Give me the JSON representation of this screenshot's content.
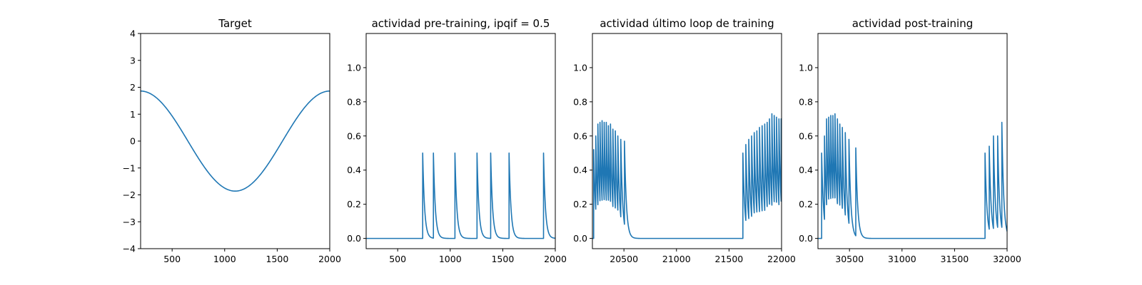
{
  "chart_data": [
    {
      "type": "line",
      "title": "Target",
      "xlabel": "",
      "ylabel": "",
      "xlim": [
        200,
        2000
      ],
      "ylim": [
        -4,
        4
      ],
      "xticks": [
        500,
        1000,
        1500,
        2000
      ],
      "xtick_labels": [
        "500",
        "1000",
        "1500",
        "2000"
      ],
      "yticks": [
        -4,
        -3,
        -2,
        -1,
        0,
        1,
        2,
        3,
        4
      ],
      "ytick_labels": [
        "−4",
        "−3",
        "−2",
        "−1",
        "0",
        "1",
        "2",
        "3",
        "4"
      ],
      "series": [
        {
          "color": "#1f77b4",
          "generator": "sine",
          "amplitude": 1.86,
          "center": 1100,
          "period": 1800,
          "x_range": [
            200,
            2000
          ]
        }
      ]
    },
    {
      "type": "line",
      "title": "actividad pre-training, ipqif = 0.5",
      "xlabel": "",
      "ylabel": "",
      "xlim": [
        200,
        2000
      ],
      "ylim": [
        -0.06,
        1.2
      ],
      "xticks": [
        500,
        1000,
        1500,
        2000
      ],
      "xtick_labels": [
        "500",
        "1000",
        "1500",
        "2000"
      ],
      "yticks": [
        0.0,
        0.2,
        0.4,
        0.6,
        0.8,
        1.0
      ],
      "ytick_labels": [
        "0.0",
        "0.2",
        "0.4",
        "0.6",
        "0.8",
        "1.0"
      ],
      "series": [
        {
          "color": "#1f77b4",
          "generator": "spikes",
          "x_range": [
            200,
            2000
          ],
          "baseline": 0,
          "decay": 18,
          "spikes": [
            [
              738,
              0.5
            ],
            [
              840,
              0.5
            ],
            [
              1045,
              0.5
            ],
            [
              1255,
              0.5
            ],
            [
              1385,
              0.5
            ],
            [
              1560,
              0.5
            ],
            [
              1888,
              0.5
            ]
          ]
        }
      ]
    },
    {
      "type": "line",
      "title": "actividad último loop de training",
      "xlabel": "",
      "ylabel": "",
      "xlim": [
        20200,
        22000
      ],
      "ylim": [
        -0.06,
        1.2
      ],
      "xticks": [
        20500,
        21000,
        21500,
        22000
      ],
      "xtick_labels": [
        "20500",
        "21000",
        "21500",
        "22000"
      ],
      "yticks": [
        0.0,
        0.2,
        0.4,
        0.6,
        0.8,
        1.0
      ],
      "ytick_labels": [
        "0.0",
        "0.2",
        "0.4",
        "0.6",
        "0.8",
        "1.0"
      ],
      "series": [
        {
          "color": "#1f77b4",
          "generator": "spikes",
          "x_range": [
            20200,
            22000
          ],
          "baseline": 0,
          "decay": 18,
          "spikes": [
            [
              20212,
              0.52
            ],
            [
              20232,
              0.6
            ],
            [
              20252,
              0.67
            ],
            [
              20272,
              0.68
            ],
            [
              20292,
              0.69
            ],
            [
              20312,
              0.68
            ],
            [
              20332,
              0.68
            ],
            [
              20352,
              0.66
            ],
            [
              20372,
              0.67
            ],
            [
              20395,
              0.64
            ],
            [
              20418,
              0.63
            ],
            [
              20442,
              0.6
            ],
            [
              20470,
              0.58
            ],
            [
              20505,
              0.57
            ],
            [
              21632,
              0.5
            ],
            [
              21660,
              0.55
            ],
            [
              21688,
              0.58
            ],
            [
              21715,
              0.6
            ],
            [
              21740,
              0.62
            ],
            [
              21765,
              0.63
            ],
            [
              21790,
              0.65
            ],
            [
              21815,
              0.66
            ],
            [
              21840,
              0.67
            ],
            [
              21863,
              0.68
            ],
            [
              21885,
              0.7
            ],
            [
              21908,
              0.73
            ],
            [
              21930,
              0.72
            ],
            [
              21952,
              0.71
            ],
            [
              21975,
              0.7
            ],
            [
              21996,
              0.7
            ]
          ]
        }
      ]
    },
    {
      "type": "line",
      "title": "actividad post-training",
      "xlabel": "",
      "ylabel": "",
      "xlim": [
        30200,
        32000
      ],
      "ylim": [
        -0.06,
        1.2
      ],
      "xticks": [
        30500,
        31000,
        31500,
        32000
      ],
      "xtick_labels": [
        "30500",
        "31000",
        "31500",
        "32000"
      ],
      "yticks": [
        0.0,
        0.2,
        0.4,
        0.6,
        0.8,
        1.0
      ],
      "ytick_labels": [
        "0.0",
        "0.2",
        "0.4",
        "0.6",
        "0.8",
        "1.0"
      ],
      "series": [
        {
          "color": "#1f77b4",
          "generator": "spikes",
          "x_range": [
            30200,
            32000
          ],
          "baseline": 0,
          "decay": 18,
          "spikes": [
            [
              30235,
              0.5
            ],
            [
              30262,
              0.6
            ],
            [
              30282,
              0.7
            ],
            [
              30302,
              0.71
            ],
            [
              30322,
              0.72
            ],
            [
              30342,
              0.72
            ],
            [
              30362,
              0.73
            ],
            [
              30385,
              0.7
            ],
            [
              30408,
              0.67
            ],
            [
              30432,
              0.65
            ],
            [
              30460,
              0.62
            ],
            [
              30495,
              0.58
            ],
            [
              30560,
              0.53
            ],
            [
              31790,
              0.5
            ],
            [
              31830,
              0.54
            ],
            [
              31870,
              0.6
            ],
            [
              31910,
              0.6
            ],
            [
              31950,
              0.68
            ]
          ]
        }
      ]
    }
  ]
}
